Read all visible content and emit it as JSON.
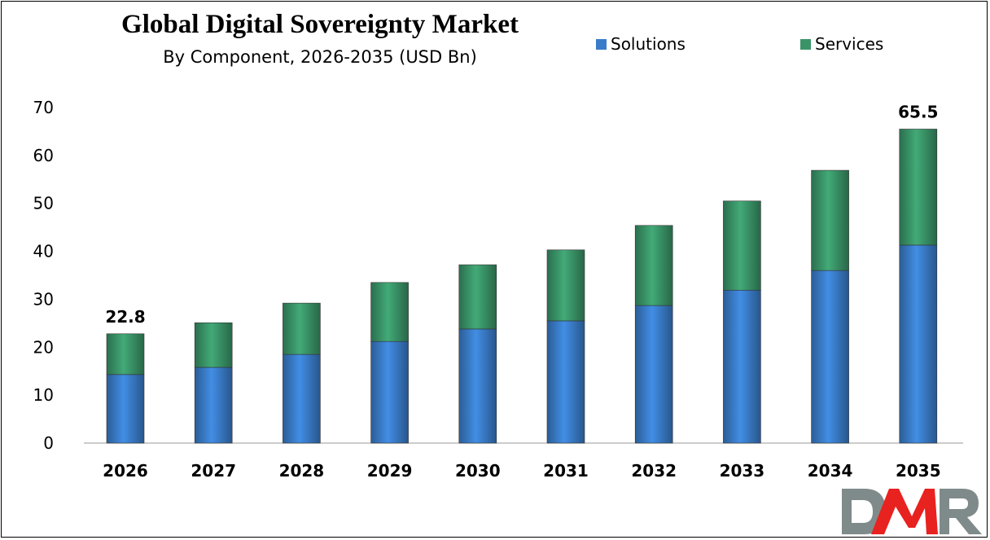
{
  "chart_data": {
    "type": "bar",
    "stacked": true,
    "title": "Global Digital Sovereignty Market",
    "subtitle": "By Component, 2026-2035 (USD Bn)",
    "categories": [
      "2026",
      "2027",
      "2028",
      "2029",
      "2030",
      "2031",
      "2032",
      "2033",
      "2034",
      "2035"
    ],
    "series": [
      {
        "name": "Solutions",
        "color": "#3a7cc8",
        "values": [
          14.3,
          15.8,
          18.5,
          21.2,
          23.8,
          25.5,
          28.7,
          31.9,
          36.0,
          41.3
        ]
      },
      {
        "name": "Services",
        "color": "#3a9468",
        "values": [
          8.5,
          9.3,
          10.7,
          12.3,
          13.4,
          14.8,
          16.7,
          18.6,
          20.9,
          24.2
        ]
      }
    ],
    "data_labels": [
      {
        "category": "2026",
        "text": "22.8"
      },
      {
        "category": "2035",
        "text": "65.5"
      }
    ],
    "ylim": [
      0,
      70
    ],
    "yticks": [
      "0",
      "10",
      "20",
      "30",
      "40",
      "50",
      "60",
      "70"
    ],
    "grid": false,
    "legend_position": "top-right"
  },
  "logo": {
    "text": "DMR",
    "colors": [
      "#7f8b8a",
      "#e8221f"
    ]
  }
}
